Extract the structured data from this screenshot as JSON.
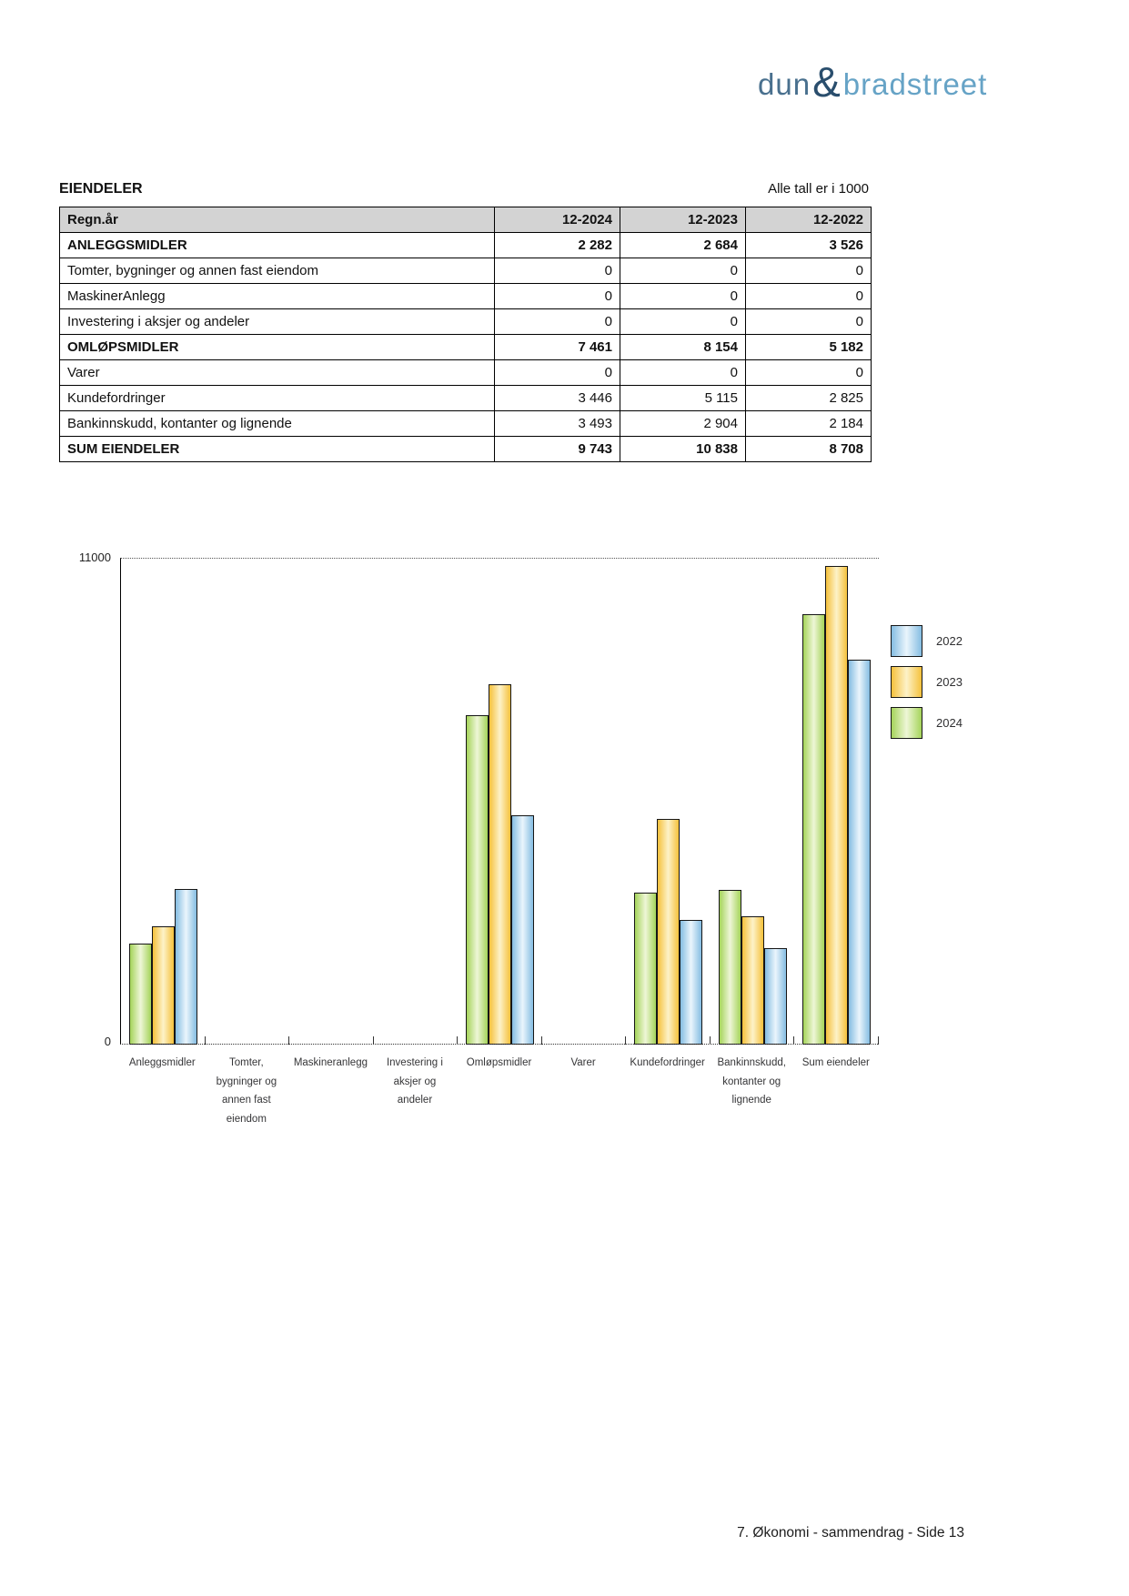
{
  "logo": {
    "part1": "dun",
    "amp": "&",
    "part2": "bradstreet",
    "part1_color": "#49708e",
    "amp_color": "#2a4e6d",
    "part2_color": "#66a3c6"
  },
  "header": {
    "title": "EIENDELER",
    "note": "Alle tall er i 1000"
  },
  "table": {
    "header": [
      "Regn.år",
      "12-2024",
      "12-2023",
      "12-2022"
    ],
    "rows": [
      {
        "label": "ANLEGGSMIDLER",
        "values": [
          "2 282",
          "2 684",
          "3 526"
        ],
        "bold": true
      },
      {
        "label": "Tomter, bygninger og annen fast eiendom",
        "values": [
          "0",
          "0",
          "0"
        ],
        "bold": false
      },
      {
        "label": "MaskinerAnlegg",
        "values": [
          "0",
          "0",
          "0"
        ],
        "bold": false
      },
      {
        "label": "Investering i aksjer og andeler",
        "values": [
          "0",
          "0",
          "0"
        ],
        "bold": false
      },
      {
        "label": "OMLØPSMIDLER",
        "values": [
          "7 461",
          "8 154",
          "5 182"
        ],
        "bold": true
      },
      {
        "label": "Varer",
        "values": [
          "0",
          "0",
          "0"
        ],
        "bold": false
      },
      {
        "label": "Kundefordringer",
        "values": [
          "3 446",
          "5 115",
          "2 825"
        ],
        "bold": false
      },
      {
        "label": "Bankinnskudd, kontanter og lignende",
        "values": [
          "3 493",
          "2 904",
          "2 184"
        ],
        "bold": false
      },
      {
        "label": "SUM EIENDELER",
        "values": [
          "9 743",
          "10 838",
          "8 708"
        ],
        "bold": true
      }
    ]
  },
  "chart_data": {
    "type": "bar",
    "title": "",
    "xlabel": "",
    "ylabel": "",
    "ylim": [
      0,
      11000
    ],
    "yticks": [
      "0",
      "11000"
    ],
    "grid": "dotted-top-gridline-at-11000",
    "legend_position": "right",
    "legend_order": [
      "2022",
      "2023",
      "2024"
    ],
    "bar_order": [
      "2024",
      "2023",
      "2022"
    ],
    "categories": [
      "Anleggsmidler",
      "Tomter, bygninger og annen fast eiendom",
      "Maskineranlegg",
      "Investering i aksjer og andeler",
      "Omløpsmidler",
      "Varer",
      "Kundefordringer",
      "Bankinnskudd, kontanter og lignende",
      "Sum eiendeler"
    ],
    "category_label_lines": [
      [
        "Anleggsmidler"
      ],
      [
        "Tomter,",
        "bygninger og",
        "annen fast",
        "eiendom"
      ],
      [
        "Maskineranlegg"
      ],
      [
        "Investering i",
        "aksjer og",
        "andeler"
      ],
      [
        "Omløpsmidler"
      ],
      [
        "Varer"
      ],
      [
        "Kundefordringer"
      ],
      [
        "Bankinnskudd,",
        "kontanter og",
        "lignende"
      ],
      [
        "Sum eiendeler"
      ]
    ],
    "series": [
      {
        "name": "2022",
        "color_edge": "#85bde2",
        "color_center": "#eaf5fc",
        "values": [
          3526,
          0,
          0,
          0,
          5182,
          0,
          2825,
          2184,
          8708
        ]
      },
      {
        "name": "2023",
        "color_edge": "#f5c13c",
        "color_center": "#fdf2c8",
        "values": [
          2684,
          0,
          0,
          0,
          8154,
          0,
          5115,
          2904,
          10838
        ]
      },
      {
        "name": "2024",
        "color_edge": "#a5d45a",
        "color_center": "#eef6d7",
        "values": [
          2282,
          0,
          0,
          0,
          7461,
          0,
          3446,
          3493,
          9743
        ]
      }
    ]
  },
  "footer": {
    "text": "7. Økonomi - sammendrag - Side 13"
  }
}
